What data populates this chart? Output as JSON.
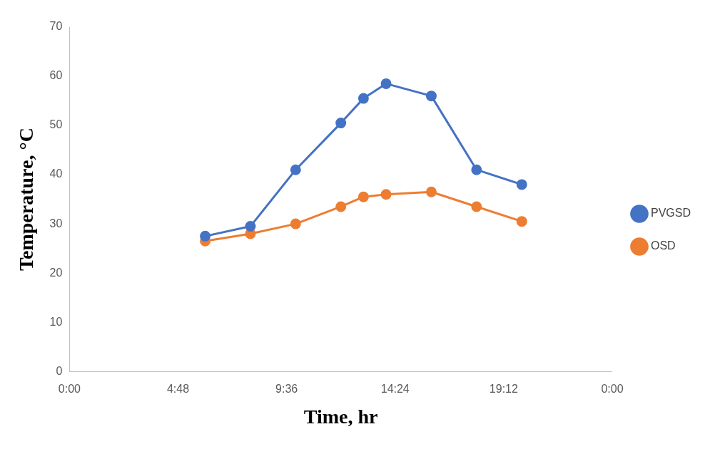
{
  "chart_data": {
    "type": "line",
    "xlabel": "Time, hr",
    "ylabel": "Temperature, °C",
    "x": [
      6,
      8,
      10,
      12,
      13,
      14,
      16,
      18,
      20
    ],
    "series": [
      {
        "name": "PVGSD",
        "color": "#4472c4",
        "values": [
          27.5,
          29.5,
          41,
          50.5,
          55.5,
          58.5,
          56,
          41,
          38
        ]
      },
      {
        "name": "OSD",
        "color": "#ed7d31",
        "values": [
          26.5,
          28,
          30,
          33.5,
          35.5,
          36,
          36.5,
          33.5,
          30.5
        ]
      }
    ],
    "xlim": [
      0,
      24
    ],
    "xticks": [
      {
        "value": 0,
        "label": "0:00"
      },
      {
        "value": 4.8,
        "label": "4:48"
      },
      {
        "value": 9.6,
        "label": "9:36"
      },
      {
        "value": 14.4,
        "label": "14:24"
      },
      {
        "value": 19.2,
        "label": "19:12"
      },
      {
        "value": 24,
        "label": "0:00"
      }
    ],
    "ylim": [
      0,
      70
    ],
    "yticks": [
      0,
      10,
      20,
      30,
      40,
      50,
      60,
      70
    ],
    "grid": false,
    "legend": "right",
    "marker": "circle",
    "line_style": "solid"
  }
}
